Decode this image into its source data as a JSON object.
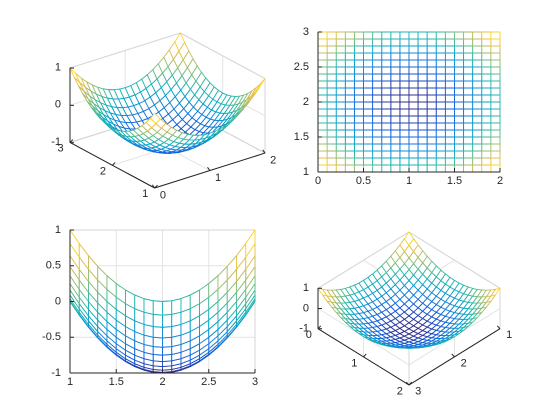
{
  "chart_data": {
    "type": "mesh",
    "x": [
      0,
      0.1,
      0.2,
      0.3,
      0.4,
      0.5,
      0.6,
      0.7,
      0.8,
      0.9,
      1,
      1.1,
      1.2,
      1.3,
      1.4,
      1.5,
      1.6,
      1.7,
      1.8,
      1.9,
      2
    ],
    "y": [
      1,
      1.1,
      1.2,
      1.3,
      1.4,
      1.5,
      1.6,
      1.7,
      1.8,
      1.9,
      2,
      2.1,
      2.2,
      2.3,
      2.4,
      2.5,
      2.6,
      2.7,
      2.8,
      2.9,
      3
    ],
    "z": [
      [
        1,
        0.81,
        0.64,
        0.49,
        0.36,
        0.25,
        0.16,
        0.09,
        0.04,
        0.01,
        0,
        0.01,
        0.04,
        0.09,
        0.16,
        0.25,
        0.36,
        0.49,
        0.64,
        0.81,
        1
      ],
      [
        0.81,
        0.62,
        0.45,
        0.3,
        0.17,
        0.06,
        -0.03,
        -0.1,
        -0.15,
        -0.18,
        -0.19,
        -0.18,
        -0.15,
        -0.1,
        -0.03,
        0.06,
        0.17,
        0.3,
        0.45,
        0.62,
        0.81
      ],
      [
        0.64,
        0.45,
        0.28,
        0.13,
        0,
        -0.11,
        -0.2,
        -0.27,
        -0.32,
        -0.35,
        -0.36,
        -0.35,
        -0.32,
        -0.27,
        -0.2,
        -0.11,
        0,
        0.13,
        0.28,
        0.45,
        0.64
      ],
      [
        0.49,
        0.3,
        0.13,
        -0.02,
        -0.15,
        -0.26,
        -0.35,
        -0.42,
        -0.47,
        -0.5,
        -0.51,
        -0.5,
        -0.47,
        -0.42,
        -0.35,
        -0.26,
        -0.15,
        -0.02,
        0.13,
        0.3,
        0.49
      ],
      [
        0.36,
        0.17,
        0,
        -0.15,
        -0.28,
        -0.39,
        -0.48,
        -0.55,
        -0.6,
        -0.63,
        -0.64,
        -0.63,
        -0.6,
        -0.55,
        -0.48,
        -0.39,
        -0.28,
        -0.15,
        0,
        0.17,
        0.36
      ],
      [
        0.25,
        0.06,
        -0.11,
        -0.26,
        -0.39,
        -0.5,
        -0.59,
        -0.66,
        -0.71,
        -0.74,
        -0.75,
        -0.74,
        -0.71,
        -0.66,
        -0.59,
        -0.5,
        -0.39,
        -0.26,
        -0.11,
        0.06,
        0.25
      ],
      [
        0.16,
        -0.03,
        -0.2,
        -0.35,
        -0.48,
        -0.59,
        -0.68,
        -0.75,
        -0.8,
        -0.83,
        -0.84,
        -0.83,
        -0.8,
        -0.75,
        -0.68,
        -0.59,
        -0.48,
        -0.35,
        -0.2,
        -0.03,
        0.16
      ],
      [
        0.09,
        -0.1,
        -0.27,
        -0.42,
        -0.55,
        -0.66,
        -0.75,
        -0.82,
        -0.87,
        -0.9,
        -0.91,
        -0.9,
        -0.87,
        -0.82,
        -0.75,
        -0.66,
        -0.55,
        -0.42,
        -0.27,
        -0.1,
        0.09
      ],
      [
        0.04,
        -0.15,
        -0.32,
        -0.47,
        -0.6,
        -0.71,
        -0.8,
        -0.87,
        -0.92,
        -0.95,
        -0.96,
        -0.95,
        -0.92,
        -0.87,
        -0.8,
        -0.71,
        -0.6,
        -0.47,
        -0.32,
        -0.15,
        0.04
      ],
      [
        0.01,
        -0.18,
        -0.35,
        -0.5,
        -0.63,
        -0.74,
        -0.83,
        -0.9,
        -0.95,
        -0.98,
        -0.99,
        -0.98,
        -0.95,
        -0.9,
        -0.83,
        -0.74,
        -0.63,
        -0.5,
        -0.35,
        -0.18,
        0.01
      ],
      [
        0,
        -0.19,
        -0.36,
        -0.51,
        -0.64,
        -0.75,
        -0.84,
        -0.91,
        -0.96,
        -0.99,
        -1,
        -0.99,
        -0.96,
        -0.91,
        -0.84,
        -0.75,
        -0.64,
        -0.51,
        -0.36,
        -0.19,
        0
      ],
      [
        0.01,
        -0.18,
        -0.35,
        -0.5,
        -0.63,
        -0.74,
        -0.83,
        -0.9,
        -0.95,
        -0.98,
        -0.99,
        -0.98,
        -0.95,
        -0.9,
        -0.83,
        -0.74,
        -0.63,
        -0.5,
        -0.35,
        -0.18,
        0.01
      ],
      [
        0.04,
        -0.15,
        -0.32,
        -0.47,
        -0.6,
        -0.71,
        -0.8,
        -0.87,
        -0.92,
        -0.95,
        -0.96,
        -0.95,
        -0.92,
        -0.87,
        -0.8,
        -0.71,
        -0.6,
        -0.47,
        -0.32,
        -0.15,
        0.04
      ],
      [
        0.09,
        -0.1,
        -0.27,
        -0.42,
        -0.55,
        -0.66,
        -0.75,
        -0.82,
        -0.87,
        -0.9,
        -0.91,
        -0.9,
        -0.87,
        -0.82,
        -0.75,
        -0.66,
        -0.55,
        -0.42,
        -0.27,
        -0.1,
        0.09
      ],
      [
        0.16,
        -0.03,
        -0.2,
        -0.35,
        -0.48,
        -0.59,
        -0.68,
        -0.75,
        -0.8,
        -0.83,
        -0.84,
        -0.83,
        -0.8,
        -0.75,
        -0.68,
        -0.59,
        -0.48,
        -0.35,
        -0.2,
        -0.03,
        0.16
      ],
      [
        0.25,
        0.06,
        -0.11,
        -0.26,
        -0.39,
        -0.5,
        -0.59,
        -0.66,
        -0.71,
        -0.74,
        -0.75,
        -0.74,
        -0.71,
        -0.66,
        -0.59,
        -0.5,
        -0.39,
        -0.26,
        -0.11,
        0.06,
        0.25
      ],
      [
        0.36,
        0.17,
        0,
        -0.15,
        -0.28,
        -0.39,
        -0.48,
        -0.55,
        -0.6,
        -0.63,
        -0.64,
        -0.63,
        -0.6,
        -0.55,
        -0.48,
        -0.39,
        -0.28,
        -0.15,
        0,
        0.17,
        0.36
      ],
      [
        0.49,
        0.3,
        0.13,
        -0.02,
        -0.15,
        -0.26,
        -0.35,
        -0.42,
        -0.47,
        -0.5,
        -0.51,
        -0.5,
        -0.47,
        -0.42,
        -0.35,
        -0.26,
        -0.15,
        -0.02,
        0.13,
        0.3,
        0.49
      ],
      [
        0.64,
        0.45,
        0.28,
        0.13,
        0,
        -0.11,
        -0.2,
        -0.27,
        -0.32,
        -0.35,
        -0.36,
        -0.35,
        -0.32,
        -0.27,
        -0.2,
        -0.11,
        0,
        0.13,
        0.28,
        0.45,
        0.64
      ],
      [
        0.81,
        0.62,
        0.45,
        0.3,
        0.17,
        0.06,
        -0.03,
        -0.1,
        -0.15,
        -0.18,
        -0.19,
        -0.18,
        -0.15,
        -0.1,
        -0.03,
        0.06,
        0.17,
        0.3,
        0.45,
        0.62,
        0.81
      ],
      [
        1,
        0.81,
        0.64,
        0.49,
        0.36,
        0.25,
        0.16,
        0.09,
        0.04,
        0.01,
        0,
        0.01,
        0.04,
        0.09,
        0.16,
        0.25,
        0.36,
        0.49,
        0.64,
        0.81,
        1
      ]
    ],
    "colormap": [
      "#352a87",
      "#0f5cdd",
      "#1481d6",
      "#06a4ca",
      "#2eb7a4",
      "#87bf77",
      "#d1bb59",
      "#fec832",
      "#f9fb0e"
    ],
    "subplots": [
      {
        "view": [
          -37.5,
          30
        ],
        "xlim": [
          0,
          2
        ],
        "ylim": [
          1,
          3
        ],
        "zlim": [
          -1,
          1
        ],
        "xticks": [
          0,
          1,
          2
        ],
        "yticks": [
          1,
          2,
          3
        ],
        "zticks": [
          -1,
          0,
          1
        ],
        "grid": true
      },
      {
        "view": [
          0,
          90
        ],
        "xlim": [
          0,
          2
        ],
        "ylim": [
          1,
          3
        ],
        "zlim": [
          -1,
          1
        ],
        "xticks": [
          0,
          0.5,
          1,
          1.5,
          2
        ],
        "yticks": [
          1,
          1.5,
          2,
          2.5,
          3
        ],
        "grid": true
      },
      {
        "view": [
          90,
          0
        ],
        "xlim": [
          0,
          2
        ],
        "ylim": [
          1,
          3
        ],
        "zlim": [
          -1,
          1
        ],
        "yticks": [
          1,
          1.5,
          2,
          2.5,
          3
        ],
        "zticks": [
          -1,
          -0.5,
          0,
          0.5,
          1
        ],
        "grid": true
      },
      {
        "view": [
          -45,
          -33
        ],
        "xlim": [
          0,
          2
        ],
        "ylim": [
          1,
          3
        ],
        "zlim": [
          -1,
          1
        ],
        "xticks": [
          0,
          1,
          2
        ],
        "yticks": [
          1,
          2,
          3
        ],
        "zticks": [
          -1,
          0,
          1
        ],
        "grid": true
      }
    ]
  }
}
